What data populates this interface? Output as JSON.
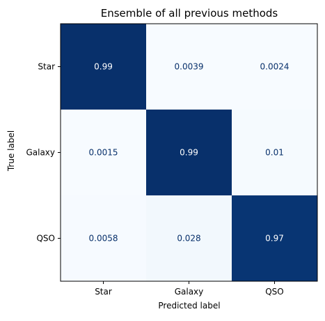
{
  "chart_data": {
    "type": "heatmap",
    "title": "Ensemble of all previous methods",
    "xlabel": "Predicted label",
    "ylabel": "True label",
    "x_categories": [
      "Star",
      "Galaxy",
      "QSO"
    ],
    "y_categories": [
      "Star",
      "Galaxy",
      "QSO"
    ],
    "values": [
      [
        0.99,
        0.0039,
        0.0024
      ],
      [
        0.0015,
        0.99,
        0.01
      ],
      [
        0.0058,
        0.028,
        0.97
      ]
    ],
    "value_labels": [
      [
        "0.99",
        "0.0039",
        "0.0024"
      ],
      [
        "0.0015",
        "0.99",
        "0.01"
      ],
      [
        "0.0058",
        "0.028",
        "0.97"
      ]
    ],
    "colormap": "Blues",
    "color_low": "#f7fbff",
    "color_high": "#08306b",
    "text_color_dark_cell": "#ffffff",
    "text_color_light_cell": "#08306b",
    "grid": false,
    "legend": "none"
  }
}
